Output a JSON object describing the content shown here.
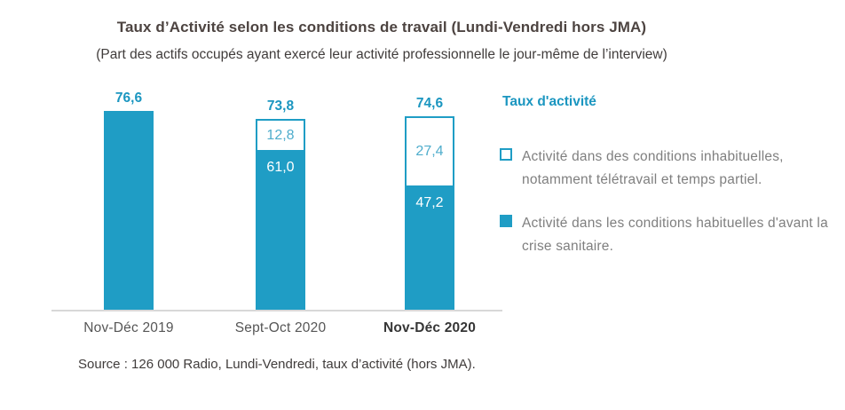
{
  "header": {
    "title": "Taux d’Activité selon les conditions de travail (Lundi-Vendredi hors JMA)",
    "subtitle": "(Part des actifs occupés ayant exercé leur activité professionnelle le jour-même de l’interview)"
  },
  "chart_data": {
    "type": "bar",
    "stacked": true,
    "title": "Taux d’Activité selon les conditions de travail (Lundi-Vendredi hors JMA)",
    "xlabel": "",
    "ylabel": "Taux d'activité (%)",
    "ylim": [
      0,
      80
    ],
    "grid": false,
    "legend_position": "right",
    "categories": [
      "Nov-Déc 2019",
      "Sept-Oct 2020",
      "Nov-Déc 2020"
    ],
    "series": [
      {
        "name": "Activité dans les conditions habituelles d'avant la crise sanitaire.",
        "style": "solid",
        "values": [
          76.6,
          61.0,
          47.2
        ]
      },
      {
        "name": "Activité dans des conditions inhabituelles, notamment télétravail et temps partiel.",
        "style": "outline",
        "values": [
          0,
          12.8,
          27.4
        ]
      }
    ],
    "totals": [
      76.6,
      73.8,
      74.6
    ],
    "bars": [
      {
        "category": "Nov-Déc 2019",
        "total": 76.6,
        "total_label": "76,6",
        "usual": 76.6,
        "usual_label": "",
        "unusual": 0,
        "unusual_label": ""
      },
      {
        "category": "Sept-Oct 2020",
        "total": 73.8,
        "total_label": "73,8",
        "usual": 61.0,
        "usual_label": "61,0",
        "unusual": 12.8,
        "unusual_label": "12,8"
      },
      {
        "category": "Nov-Déc 2020",
        "total": 74.6,
        "total_label": "74,6",
        "usual": 47.2,
        "usual_label": "47,2",
        "unusual": 27.4,
        "unusual_label": "27,4"
      }
    ]
  },
  "legend": {
    "title": "Taux d'activité",
    "items": [
      {
        "swatch": "outline",
        "label": "Activité dans des conditions inhabituelles, notamment télétravail et temps partiel."
      },
      {
        "swatch": "solid",
        "label": "Activité dans les conditions habituelles d'avant la crise sanitaire."
      }
    ]
  },
  "footer": {
    "source": "Source : 126 000 Radio, Lundi-Vendredi, taux d’activité (hors JMA)."
  },
  "colors": {
    "teal": "#1f9dc5",
    "teal_text": "#1b96c0",
    "teal_light_label": "#4fadcc",
    "title_text": "#4d4441",
    "body_text": "#403c3b",
    "legend_text": "#7f7f7f",
    "axis_line": "#d8d8d8"
  }
}
